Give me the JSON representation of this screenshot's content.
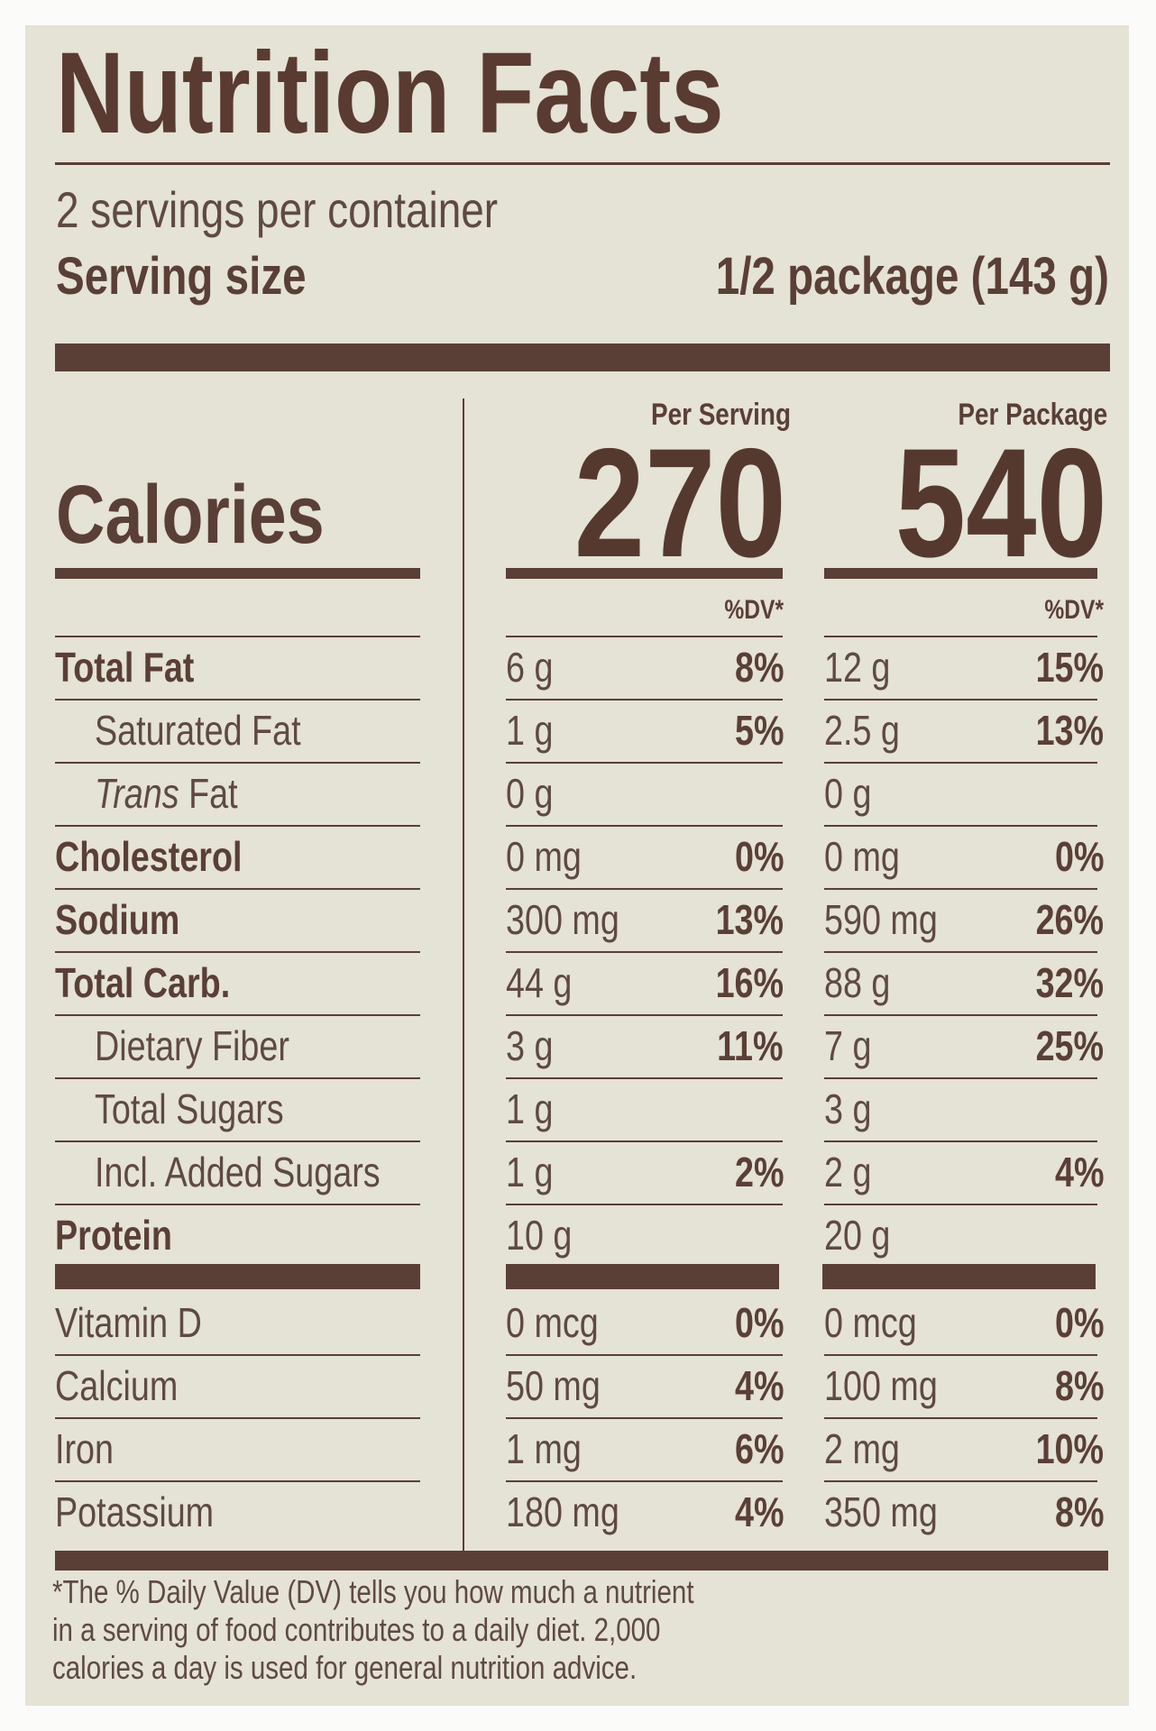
{
  "title": "Nutrition Facts",
  "servings_per_container": "2 servings per container",
  "serving_size": {
    "label": "Serving size",
    "value": "1/2 package (143 g)"
  },
  "calories": {
    "label": "Calories",
    "per_serving_header": "Per Serving",
    "per_package_header": "Per Package",
    "per_serving": "270",
    "per_package": "540",
    "dv_header": "%DV*"
  },
  "nutrients": [
    {
      "name": "Total Fat",
      "bold": true,
      "indent": false,
      "serving": "6 g",
      "serving_dv": "8%",
      "package": "12 g",
      "package_dv": "15%"
    },
    {
      "name": "Saturated Fat",
      "bold": false,
      "indent": true,
      "serving": "1 g",
      "serving_dv": "5%",
      "package": "2.5 g",
      "package_dv": "13%"
    },
    {
      "name": "Trans Fat",
      "italic_prefix": "Trans",
      "bold": false,
      "indent": true,
      "serving": "0 g",
      "serving_dv": "",
      "package": "0 g",
      "package_dv": ""
    },
    {
      "name": "Cholesterol",
      "bold": true,
      "indent": false,
      "serving": "0 mg",
      "serving_dv": "0%",
      "package": "0 mg",
      "package_dv": "0%"
    },
    {
      "name": "Sodium",
      "bold": true,
      "indent": false,
      "serving": "300 mg",
      "serving_dv": "13%",
      "package": "590 mg",
      "package_dv": "26%"
    },
    {
      "name": "Total Carb.",
      "bold": true,
      "indent": false,
      "serving": "44 g",
      "serving_dv": "16%",
      "package": "88 g",
      "package_dv": "32%"
    },
    {
      "name": "Dietary Fiber",
      "bold": false,
      "indent": true,
      "serving": "3 g",
      "serving_dv": "11%",
      "package": "7 g",
      "package_dv": "25%"
    },
    {
      "name": "Total Sugars",
      "bold": false,
      "indent": true,
      "serving": "1 g",
      "serving_dv": "",
      "package": "3 g",
      "package_dv": ""
    },
    {
      "name": "Incl. Added Sugars",
      "bold": false,
      "indent": true,
      "serving": "1 g",
      "serving_dv": "2%",
      "package": "2 g",
      "package_dv": "4%"
    },
    {
      "name": "Protein",
      "bold": true,
      "indent": false,
      "serving": "10 g",
      "serving_dv": "",
      "package": "20 g",
      "package_dv": ""
    }
  ],
  "vitamins": [
    {
      "name": "Vitamin D",
      "serving": "0 mcg",
      "serving_dv": "0%",
      "package": "0 mcg",
      "package_dv": "0%"
    },
    {
      "name": "Calcium",
      "serving": "50 mg",
      "serving_dv": "4%",
      "package": "100 mg",
      "package_dv": "8%"
    },
    {
      "name": "Iron",
      "serving": "1 mg",
      "serving_dv": "6%",
      "package": "2 mg",
      "package_dv": "10%"
    },
    {
      "name": "Potassium",
      "serving": "180 mg",
      "serving_dv": "4%",
      "package": "350 mg",
      "package_dv": "8%"
    }
  ],
  "footnote": [
    "*The % Daily Value (DV) tells you how much a nutrient",
    "in a serving of food contributes to a daily diet. 2,000",
    "calories a day is used for general nutrition advice."
  ],
  "colors": {
    "ink": "#5a3f36",
    "background": "#e5e2d6"
  }
}
